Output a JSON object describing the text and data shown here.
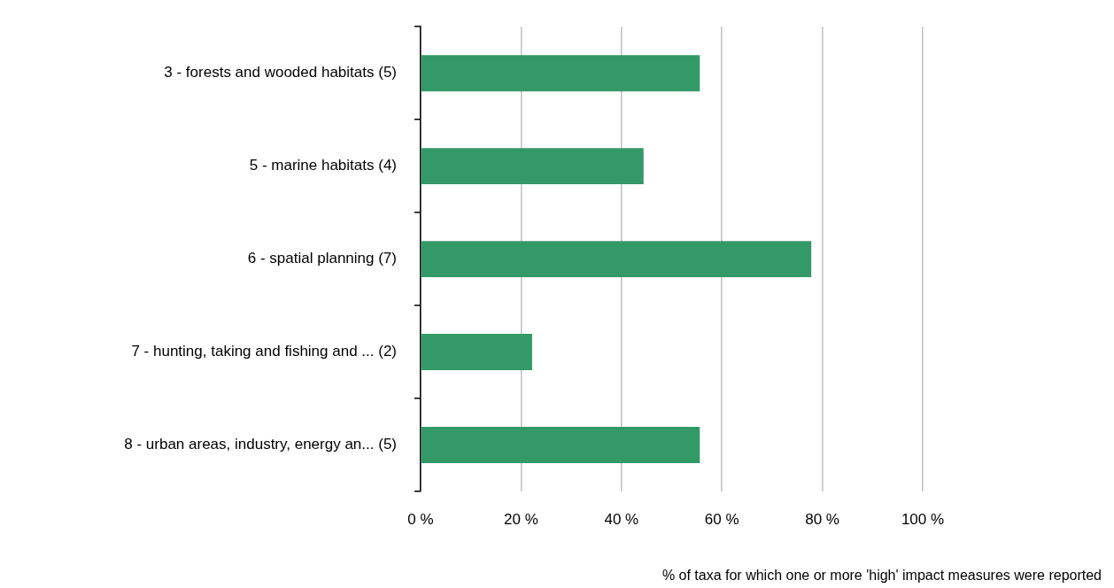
{
  "chart_data": {
    "type": "bar",
    "orientation": "horizontal",
    "categories": [
      "3 - forests and wooded habitats (5)",
      "5 - marine habitats (4)",
      "6 - spatial planning (7)",
      "7 - hunting, taking and fishing and ... (2)",
      "8 - urban areas, industry, energy an... (5)"
    ],
    "values": [
      55.6,
      44.4,
      77.8,
      22.2,
      55.6
    ],
    "color": "#339966",
    "xlim": [
      0,
      100
    ],
    "xticks": [
      {
        "value": 0,
        "label": "0 %"
      },
      {
        "value": 20,
        "label": "20 %"
      },
      {
        "value": 40,
        "label": "40 %"
      },
      {
        "value": 60,
        "label": "60 %"
      },
      {
        "value": 80,
        "label": "80 %"
      },
      {
        "value": 100,
        "label": "100 %"
      }
    ],
    "xlabel": "% of taxa for which one or more 'high' impact measures were reported",
    "grid": "x"
  }
}
